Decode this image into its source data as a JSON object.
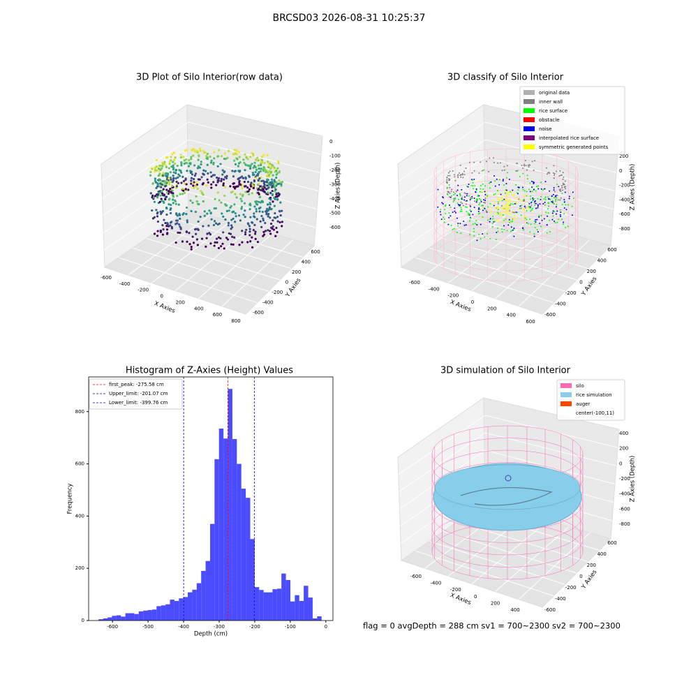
{
  "title": "BRCSD03 2026-08-31 10:25:37",
  "status": "flag = 0     avgDepth = 288 cm  sv1 = 700~2300  sv2 = 700~2300",
  "chart_data": [
    {
      "type": "scatter3d",
      "title": "3D Plot of Silo Interior(row data)",
      "xlabel": "X Axies",
      "ylabel": "Y Axies",
      "zlabel": "Z Axies (Depth)",
      "xticks": [
        -600,
        -400,
        -200,
        0,
        200,
        400,
        600,
        800
      ],
      "yticks": [
        600,
        400,
        200,
        0,
        -200,
        -400,
        -600
      ],
      "zticks": [
        0,
        -100,
        -200,
        -300,
        -400,
        -500,
        -600
      ]
    },
    {
      "type": "classify3d",
      "title": "3D classify of Silo Interior",
      "xlabel": "X Axies",
      "ylabel": "Y Axies",
      "zlabel": "Z Axies (Depth)",
      "xticks": [
        -600,
        -400,
        -200,
        0,
        200,
        400,
        600
      ],
      "yticks": [
        600,
        400,
        200,
        0,
        -200,
        -400,
        -600
      ],
      "zticks": [
        200,
        0,
        -200,
        -400,
        -600,
        -800
      ],
      "legend": [
        {
          "name": "original data",
          "color": "#b0b0b0"
        },
        {
          "name": "inner wall",
          "color": "#808080"
        },
        {
          "name": "rice surface",
          "color": "#00ff00"
        },
        {
          "name": "obstacle",
          "color": "#ff0000"
        },
        {
          "name": "noise",
          "color": "#0000e6"
        },
        {
          "name": "interpolated rice surface",
          "color": "#800080"
        },
        {
          "name": "symmetric generated points",
          "color": "#ffff00"
        }
      ]
    },
    {
      "type": "histogram",
      "title": "Histogram of Z-Axies (Height) Values",
      "xlabel": "Depth (cm)",
      "ylabel": "Frequency",
      "color": "#4b4bff",
      "xlim": [
        -667,
        20
      ],
      "ylim": [
        0,
        933
      ],
      "xticks": [
        -600,
        -500,
        -400,
        -300,
        -200,
        -100,
        0
      ],
      "yticks": [
        0,
        200,
        400,
        600,
        800
      ],
      "bins": [
        -639.0,
        -626.46,
        -613.92,
        -601.38,
        -588.84,
        -576.3,
        -563.76,
        -551.22,
        -538.68,
        -526.14,
        -513.6,
        -501.06,
        -488.52,
        -475.98,
        -463.44,
        -450.9,
        -438.36,
        -425.82,
        -413.28,
        -400.74,
        -388.2,
        -375.66,
        -363.12,
        -350.58,
        -338.04,
        -325.5,
        -312.96,
        -300.42,
        -287.88,
        -275.34,
        -262.8,
        -250.26,
        -237.72,
        -225.18,
        -212.64,
        -200.1,
        -187.56,
        -175.02,
        -162.48,
        -149.94,
        -137.4,
        -124.86,
        -112.32,
        -99.78,
        -87.24,
        -74.7,
        -62.16,
        -49.62,
        -37.08,
        -24.54,
        -12.0
      ],
      "counts": [
        5,
        8,
        12,
        18,
        20,
        15,
        28,
        28,
        25,
        35,
        38,
        40,
        42,
        55,
        58,
        62,
        80,
        75,
        85,
        90,
        108,
        118,
        143,
        190,
        228,
        370,
        618,
        735,
        697,
        887,
        695,
        600,
        505,
        470,
        312,
        128,
        117,
        108,
        108,
        120,
        122,
        180,
        155,
        73,
        97,
        75,
        133,
        88,
        8,
        16
      ],
      "lines": [
        {
          "value": -275.58,
          "label": "first_peak: -275.58 cm",
          "color": "#ff0000"
        },
        {
          "value": -201.07,
          "label": "Upper_limit: -201.07 cm",
          "color": "#0000cc"
        },
        {
          "value": -399.76,
          "label": "Lower_limit: -399.76 cm",
          "color": "#0000cc"
        }
      ]
    },
    {
      "type": "surface3d",
      "title": "3D simulation of Silo Interior",
      "xlabel": "X Axies",
      "ylabel": "Y Axies",
      "zlabel": "Z Axies (Depth)",
      "xticks": [
        -600,
        -400,
        -200,
        0,
        200,
        400
      ],
      "yticks": [
        600,
        400,
        200,
        0,
        -200,
        -400,
        -600
      ],
      "zticks": [
        400,
        200,
        0,
        -200,
        -400,
        -600,
        -800
      ],
      "legend": [
        {
          "name": "silo",
          "color": "#ff69b4"
        },
        {
          "name": "rice simulation",
          "color": "#87ceeb"
        },
        {
          "name": "auger",
          "color": "#ff4500"
        },
        {
          "name": "center(-100,11)"
        }
      ]
    }
  ]
}
